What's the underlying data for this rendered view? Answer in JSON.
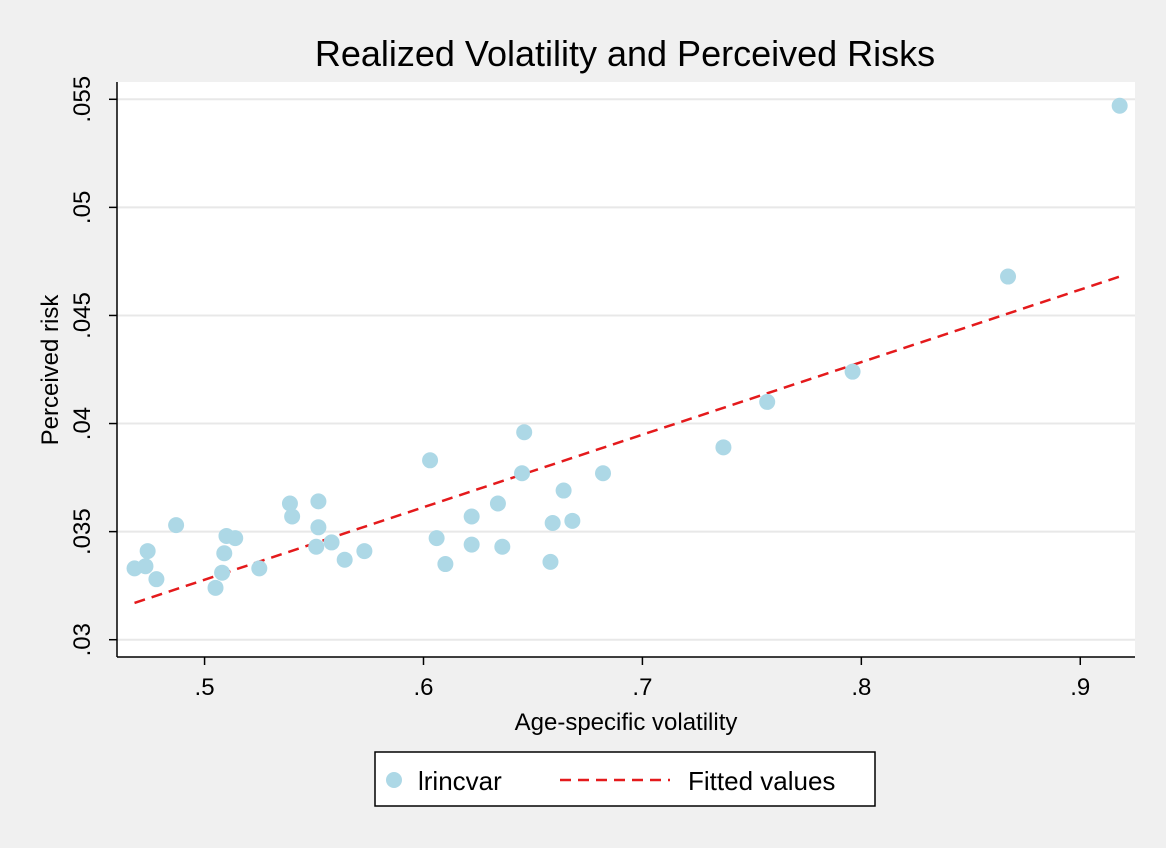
{
  "chart_data": {
    "type": "scatter",
    "title": "Realized Volatility and Perceived Risks",
    "xlabel": "Age-specific volatility",
    "ylabel": "Perceived risk",
    "xlim": [
      0.46,
      0.925
    ],
    "ylim": [
      0.0292,
      0.0558
    ],
    "x_ticks": [
      0.5,
      0.6,
      0.7,
      0.8,
      0.9
    ],
    "x_tick_labels": [
      ".5",
      ".6",
      ".7",
      ".8",
      ".9"
    ],
    "y_ticks": [
      0.03,
      0.035,
      0.04,
      0.045,
      0.05,
      0.055
    ],
    "y_tick_labels": [
      ".03",
      ".035",
      ".04",
      ".045",
      ".05",
      ".055"
    ],
    "grid": true,
    "legend_position": "bottom",
    "series": [
      {
        "name": "lrincvar",
        "kind": "scatter",
        "color": "#add8e6",
        "points": [
          [
            0.468,
            0.0333
          ],
          [
            0.473,
            0.0334
          ],
          [
            0.474,
            0.0341
          ],
          [
            0.478,
            0.0328
          ],
          [
            0.487,
            0.0353
          ],
          [
            0.505,
            0.0324
          ],
          [
            0.508,
            0.0331
          ],
          [
            0.509,
            0.034
          ],
          [
            0.51,
            0.0348
          ],
          [
            0.514,
            0.0347
          ],
          [
            0.525,
            0.0333
          ],
          [
            0.539,
            0.0363
          ],
          [
            0.54,
            0.0357
          ],
          [
            0.551,
            0.0343
          ],
          [
            0.552,
            0.0352
          ],
          [
            0.552,
            0.0364
          ],
          [
            0.558,
            0.0345
          ],
          [
            0.564,
            0.0337
          ],
          [
            0.573,
            0.0341
          ],
          [
            0.603,
            0.0383
          ],
          [
            0.606,
            0.0347
          ],
          [
            0.61,
            0.0335
          ],
          [
            0.622,
            0.0344
          ],
          [
            0.622,
            0.0357
          ],
          [
            0.634,
            0.0363
          ],
          [
            0.636,
            0.0343
          ],
          [
            0.645,
            0.0377
          ],
          [
            0.646,
            0.0396
          ],
          [
            0.658,
            0.0336
          ],
          [
            0.659,
            0.0354
          ],
          [
            0.664,
            0.0369
          ],
          [
            0.668,
            0.0355
          ],
          [
            0.682,
            0.0377
          ],
          [
            0.737,
            0.0389
          ],
          [
            0.757,
            0.041
          ],
          [
            0.796,
            0.0424
          ],
          [
            0.867,
            0.0468
          ],
          [
            0.918,
            0.0547
          ]
        ]
      },
      {
        "name": "Fitted values",
        "kind": "line",
        "color": "#e41a1c",
        "dash": "dashed",
        "x": [
          0.468,
          0.918
        ],
        "y": [
          0.0317,
          0.0468
        ]
      }
    ]
  }
}
